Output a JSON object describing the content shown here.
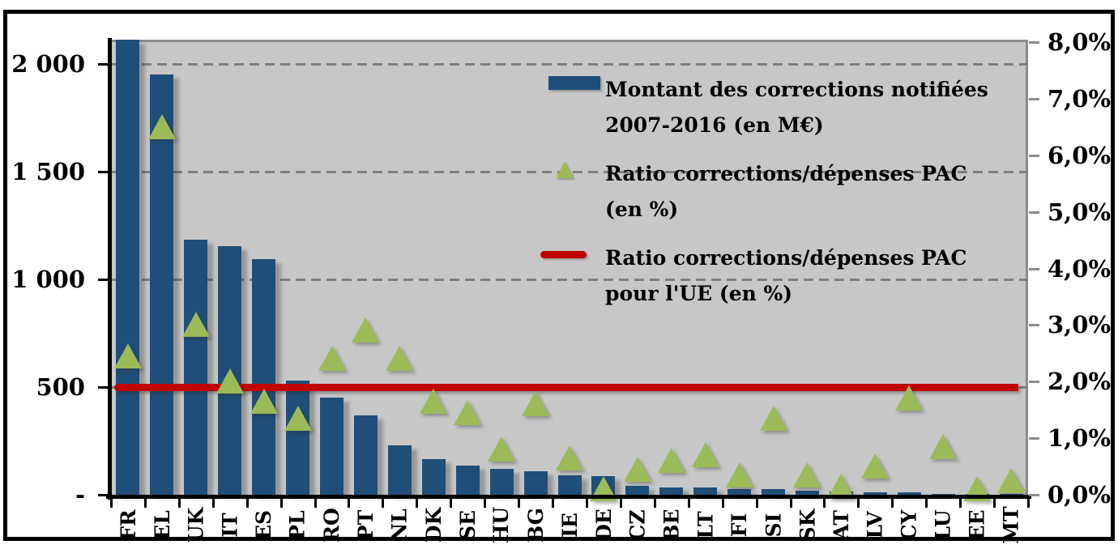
{
  "colors": {
    "bar": "#1F4E79",
    "marker": "#9BBB59",
    "eu_line": "#C00000",
    "plot_background": "#C7C7C7",
    "gridline": "#7F7F7F",
    "primary_axis": "#000000",
    "secondary_axis": "#8C8C8C"
  },
  "legend": {
    "items": [
      {
        "key": "bar-swatch",
        "line1": "Montant des corrections notifiées",
        "line2": "2007-2016 (en M€)"
      },
      {
        "key": "triangle-marker",
        "line1": "Ratio corrections/dépenses PAC",
        "line2": "(en %)"
      },
      {
        "key": "line-swatch",
        "line1": "Ratio corrections/dépenses PAC",
        "line2": "pour l'UE (en %)"
      }
    ]
  },
  "chart_data": {
    "type": "combo",
    "categories": [
      "FR",
      "EL",
      "UK",
      "IT",
      "ES",
      "PL",
      "RO",
      "PT",
      "NL",
      "DK",
      "SE",
      "HU",
      "BG",
      "IE",
      "DE",
      "CZ",
      "BE",
      "LT",
      "FI",
      "SI",
      "SK",
      "AT",
      "LV",
      "CY",
      "LU",
      "EE",
      "MT"
    ],
    "series": [
      {
        "name": "Montant des corrections notifiées 2007-2016 (en M€)",
        "type": "bar",
        "axis": "left",
        "values": [
          2150,
          1950,
          1185,
          1155,
          1095,
          530,
          450,
          370,
          230,
          165,
          135,
          120,
          110,
          90,
          85,
          40,
          35,
          35,
          25,
          25,
          20,
          15,
          12,
          10,
          5,
          3,
          2
        ]
      },
      {
        "name": "Ratio corrections/dépenses PAC (en %)",
        "type": "scatter",
        "marker": "triangle",
        "axis": "right",
        "values": [
          2.45,
          6.5,
          3.0,
          2.0,
          1.65,
          1.35,
          2.4,
          2.9,
          2.4,
          1.65,
          1.45,
          0.8,
          1.6,
          0.65,
          0.1,
          0.45,
          0.6,
          0.7,
          0.35,
          1.35,
          0.35,
          0.15,
          0.5,
          1.7,
          0.85,
          0.1,
          0.25
        ]
      },
      {
        "name": "Ratio corrections/dépenses PAC pour l'UE (en %)",
        "type": "line",
        "axis": "right",
        "constant_value": 1.9
      }
    ],
    "left_axis": {
      "tick_labels": [
        "2 000",
        "1 500",
        "1 000",
        "500",
        "-"
      ],
      "values": [
        2000,
        1500,
        1000,
        500,
        0
      ],
      "display_max": 2112
    },
    "right_axis": {
      "tick_labels": [
        "8,0%",
        "7,0%",
        "6,0%",
        "5,0%",
        "4,0%",
        "3,0%",
        "2,0%",
        "1,0%",
        "0,0%"
      ],
      "values": [
        8,
        7,
        6,
        5,
        4,
        3,
        2,
        1,
        0
      ],
      "min": 0,
      "max": 8
    },
    "grid": "dashed horizontal, left-axis major units",
    "legend_position": "inside plot, upper right"
  }
}
